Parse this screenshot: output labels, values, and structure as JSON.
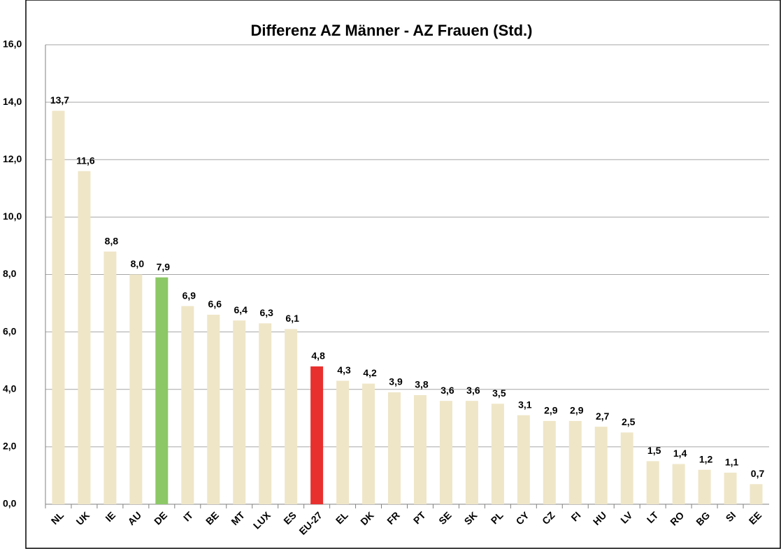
{
  "chart_data": {
    "type": "bar",
    "title": "Differenz AZ Männer - AZ Frauen (Std.)",
    "categories": [
      "NL",
      "UK",
      "IE",
      "AU",
      "DE",
      "IT",
      "BE",
      "MT",
      "LUX",
      "ES",
      "EU-27",
      "EL",
      "DK",
      "FR",
      "PT",
      "SE",
      "SK",
      "PL",
      "CY",
      "CZ",
      "FI",
      "HU",
      "LV",
      "LT",
      "RO",
      "BG",
      "SI",
      "EE"
    ],
    "values": [
      13.7,
      11.6,
      8.8,
      8.0,
      7.9,
      6.9,
      6.6,
      6.4,
      6.3,
      6.1,
      4.8,
      4.3,
      4.2,
      3.9,
      3.8,
      3.6,
      3.6,
      3.5,
      3.1,
      2.9,
      2.9,
      2.7,
      2.5,
      1.5,
      1.4,
      1.2,
      1.1,
      0.7
    ],
    "value_labels": [
      "13,7",
      "11,6",
      "8,8",
      "8,0",
      "7,9",
      "6,9",
      "6,6",
      "6,4",
      "6,3",
      "6,1",
      "4,8",
      "4,3",
      "4,2",
      "3,9",
      "3,8",
      "3,6",
      "3,6",
      "3,5",
      "3,1",
      "2,9",
      "2,9",
      "2,7",
      "2,5",
      "1,5",
      "1,4",
      "1,2",
      "1,1",
      "0,7"
    ],
    "colors": [
      "#efe6c8",
      "#efe6c8",
      "#efe6c8",
      "#efe6c8",
      "#8cc866",
      "#efe6c8",
      "#efe6c8",
      "#efe6c8",
      "#efe6c8",
      "#efe6c8",
      "#e8302e",
      "#efe6c8",
      "#efe6c8",
      "#efe6c8",
      "#efe6c8",
      "#efe6c8",
      "#efe6c8",
      "#efe6c8",
      "#efe6c8",
      "#efe6c8",
      "#efe6c8",
      "#efe6c8",
      "#efe6c8",
      "#efe6c8",
      "#efe6c8",
      "#efe6c8",
      "#efe6c8",
      "#efe6c8"
    ],
    "ylim": [
      0,
      16
    ],
    "yticks": [
      {
        "value": 0,
        "label": "0,0"
      },
      {
        "value": 2,
        "label": "2,0"
      },
      {
        "value": 4,
        "label": "4,0"
      },
      {
        "value": 6,
        "label": "6,0"
      },
      {
        "value": 8,
        "label": "8,0"
      },
      {
        "value": 10,
        "label": "10,0"
      },
      {
        "value": 12,
        "label": "12,0"
      },
      {
        "value": 14,
        "label": "14,0"
      },
      {
        "value": 16,
        "label": "16,0"
      }
    ],
    "grid": true
  }
}
